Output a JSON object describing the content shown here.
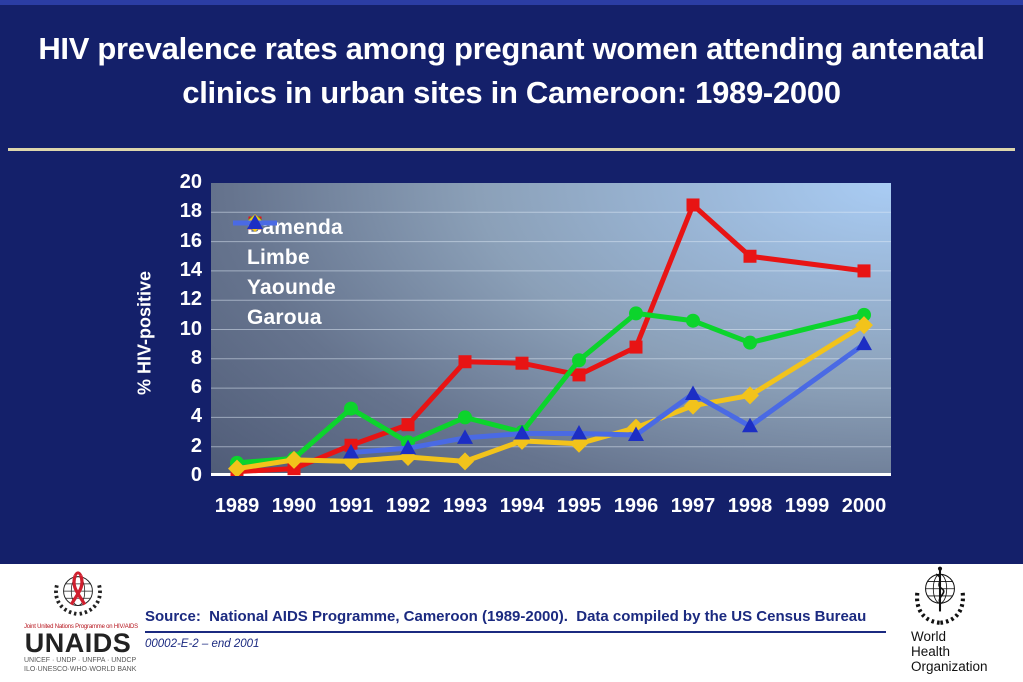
{
  "slide": {
    "title": "HIV prevalence rates among pregnant women attending antenatal clinics in urban sites in Cameroon: 1989-2000",
    "colors": {
      "background": "#14206a",
      "top_border": "#2b3da4",
      "title_text": "#ffffff",
      "title_divider": "#ddd6ac",
      "plot_gradient_light": "#a9ccf4",
      "plot_gradient_dark": "#4e5a76",
      "axis_text": "#ffffff",
      "source_text": "#1b2a80"
    }
  },
  "chart_data": {
    "type": "line",
    "title": "",
    "ylabel": "% HIV-positive",
    "xlabel": "",
    "ylim": [
      0,
      20
    ],
    "ytick_step": 2,
    "grid": true,
    "legend_position": "top-left",
    "categories": [
      "1989",
      "1990",
      "1991",
      "1992",
      "1993",
      "1994",
      "1995",
      "1996",
      "1997",
      "1998",
      "1999",
      "2000"
    ],
    "series": [
      {
        "name": "Bamenda",
        "marker": "square",
        "color": "#e81414",
        "marker_color": "#e81414",
        "values": [
          0.3,
          0.5,
          2.1,
          3.5,
          7.8,
          7.7,
          6.9,
          8.8,
          18.5,
          15.0,
          null,
          14.0
        ]
      },
      {
        "name": "Limbe",
        "marker": "circle",
        "color": "#0cd42c",
        "marker_color": "#0cd42c",
        "values": [
          0.9,
          1.2,
          4.6,
          2.3,
          4.0,
          3.0,
          7.9,
          11.1,
          10.6,
          9.1,
          null,
          11.0
        ]
      },
      {
        "name": "Yaounde",
        "marker": "diamond",
        "color": "#f2c31b",
        "marker_color": "#f2c31b",
        "values": [
          0.5,
          1.1,
          1.0,
          1.3,
          1.0,
          2.4,
          2.2,
          3.3,
          4.8,
          5.5,
          null,
          10.3
        ]
      },
      {
        "name": "Garoua",
        "marker": "triangle",
        "color": "#4a6ae4",
        "marker_color": "#1c2ec4",
        "values": [
          null,
          null,
          1.6,
          1.9,
          2.6,
          2.9,
          2.9,
          2.8,
          5.6,
          3.4,
          null,
          9.0
        ]
      }
    ]
  },
  "footer": {
    "source_text": "Source:  National AIDS Programme, Cameroon (1989-2000).  Data compiled by the US Census Bureau",
    "slide_code": "00002-E-2 – end 2001",
    "unaids": {
      "tagline": "Joint United Nations Programme on HIV/AIDS",
      "name": "UNAIDS",
      "cosponsors_line1": "UNICEF · UNDP · UNFPA · UNDCP",
      "cosponsors_line2": "ILO·UNESCO·WHO·WORLD BANK"
    },
    "who": {
      "name_line1": "World Health",
      "name_line2": "Organization"
    }
  }
}
